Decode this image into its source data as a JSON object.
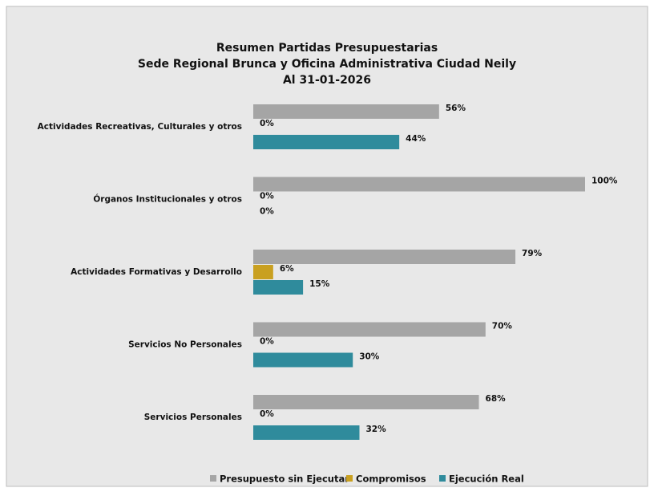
{
  "chart_data": {
    "type": "hbar",
    "title": [
      "Resumen Partidas Presupuestarias",
      "Sede Regional Brunca y Oficina Administrativa Ciudad Neily",
      "Al 31-01-2026"
    ],
    "categories": [
      "Actividades Recreativas, Culturales y otros",
      "Órganos Institucionales y otros",
      "Actividades Formativas y Desarrollo",
      "Servicios No Personales",
      "Servicios Personales"
    ],
    "series": [
      {
        "name": "Presupuesto sin Ejecutar",
        "color": "#a5a5a5",
        "values": [
          56,
          100,
          79,
          70,
          68
        ],
        "value_labels": [
          "56%",
          "100%",
          "79%",
          "70%",
          "68%"
        ]
      },
      {
        "name": "Compromisos",
        "color": "#c9a020",
        "values": [
          0,
          0,
          6,
          0,
          0
        ],
        "value_labels": [
          "0%",
          "0%",
          "6%",
          "0%",
          "0%"
        ]
      },
      {
        "name": "Ejecución Real",
        "color": "#2f8b9c",
        "values": [
          44,
          0,
          15,
          30,
          32
        ],
        "value_labels": [
          "44%",
          "0%",
          "15%",
          "30%",
          "32%"
        ]
      }
    ],
    "xlim": [
      0,
      100
    ],
    "legend": "bottom"
  }
}
